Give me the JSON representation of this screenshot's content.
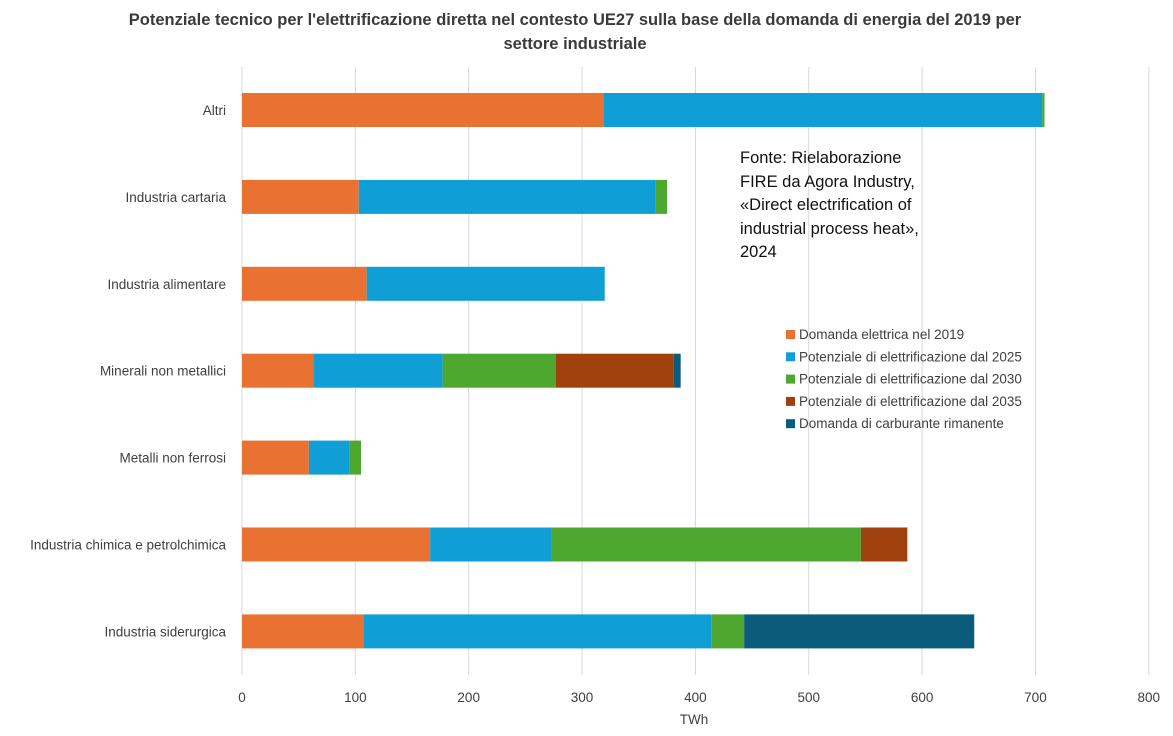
{
  "chart_data": {
    "type": "bar",
    "orientation": "horizontal",
    "stacked": true,
    "title": "Potenziale tecnico per l'elettrificazione diretta nel contesto UE27 sulla base della domanda di energia del 2019 per settore industriale",
    "xlabel": "TWh",
    "ylabel": "",
    "xlim": [
      0,
      800
    ],
    "xticks": [
      0,
      100,
      200,
      300,
      400,
      500,
      600,
      700,
      800
    ],
    "grid": "vertical",
    "legend_position": "right",
    "categories": [
      "Altri",
      "Industria cartaria",
      "Industria alimentare",
      "Minerali non metallici",
      "Metalli non ferrosi",
      "Industria chimica e petrolchimica",
      "Industria siderurgica"
    ],
    "series": [
      {
        "name": "Domanda elettrica nel 2019",
        "color": "#E97132",
        "values": [
          319,
          103,
          110,
          63,
          59,
          166,
          107
        ]
      },
      {
        "name": "Potenziale di elettrificazione dal 2025",
        "color": "#0F9ED5",
        "values": [
          387,
          262,
          210,
          114,
          36,
          107,
          307
        ]
      },
      {
        "name": "Potenziale di elettrificazione dal 2030",
        "color": "#4EA72E",
        "values": [
          2,
          10,
          0,
          100,
          10,
          273,
          29
        ]
      },
      {
        "name": "Potenziale di elettrificazione dal 2035",
        "color": "#A0410D",
        "values": [
          0,
          0,
          0,
          104,
          0,
          41,
          0
        ]
      },
      {
        "name": "Domanda di carburante rimanente",
        "color": "#0B5C7C",
        "values": [
          0,
          0,
          0,
          6,
          0,
          0,
          203
        ]
      }
    ],
    "annotation": "Fonte: Rielaborazione FIRE da Agora Industry, «Direct electrification of industrial process heat», 2024"
  },
  "page": {
    "title_line1": "Potenziale tecnico per l'elettrificazione diretta nel contesto UE27 sulla base della domanda di energia del 2019 per",
    "title_line2": "settore industriale",
    "source_lines": [
      "Fonte: Rielaborazione",
      "FIRE da Agora Industry,",
      "«Direct electrification of",
      "industrial process heat»,",
      "2024"
    ]
  }
}
